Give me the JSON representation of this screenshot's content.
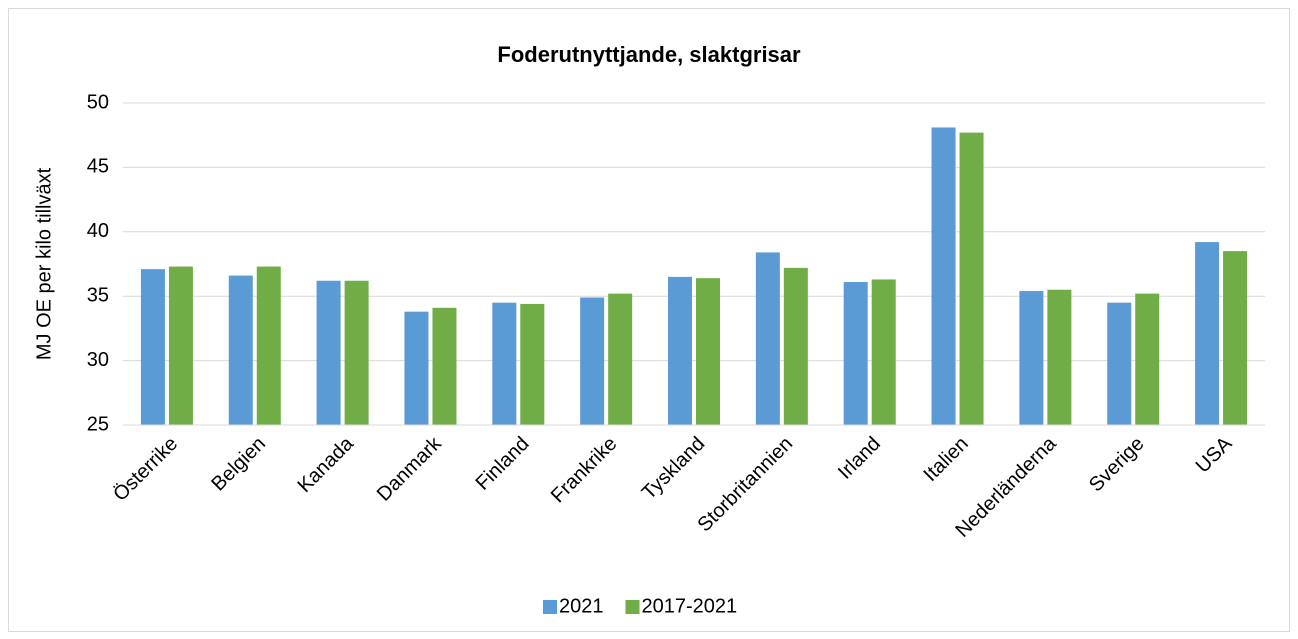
{
  "chart_data": {
    "type": "bar",
    "title": "Foderutnyttjande, slaktgrisar",
    "y_label": "MJ OE per kilo tillväxt",
    "categories": [
      "Österrike",
      "Belgien",
      "Kanada",
      "Danmark",
      "Finland",
      "Frankrike",
      "Tyskland",
      "Storbritannien",
      "Irland",
      "Italien",
      "Nederländerna",
      "Sverige",
      "USA"
    ],
    "series": [
      {
        "name": "2021",
        "color": "#5b9bd5",
        "values": [
          37.1,
          36.6,
          36.2,
          33.8,
          34.5,
          34.9,
          36.5,
          38.4,
          36.1,
          48.1,
          35.4,
          34.5,
          39.2
        ]
      },
      {
        "name": "2017-2021",
        "color": "#70ad47",
        "values": [
          37.3,
          37.3,
          36.2,
          34.1,
          34.4,
          35.2,
          36.4,
          37.2,
          36.3,
          47.7,
          35.5,
          35.2,
          38.5
        ]
      }
    ],
    "ylim": [
      25,
      50
    ],
    "yticks": [
      25,
      30,
      35,
      40,
      45,
      50
    ],
    "grid": true,
    "legend": "bottom"
  }
}
